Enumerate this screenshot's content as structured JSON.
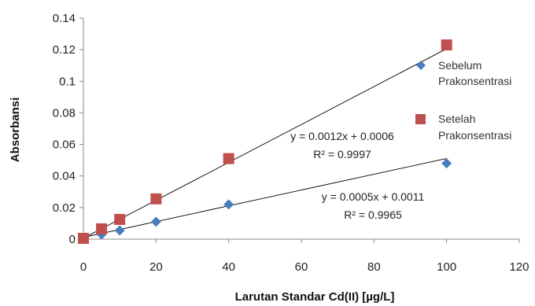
{
  "chart_data": {
    "type": "scatter",
    "title": "",
    "xlabel": "Larutan Standar Cd(II) [µg/L]",
    "ylabel": "Absorbansi",
    "xlim": [
      0,
      120
    ],
    "ylim": [
      0,
      0.14
    ],
    "x_ticks": [
      "0",
      "20",
      "40",
      "60",
      "80",
      "100",
      "120"
    ],
    "y_ticks": [
      "0",
      "0.02",
      "0.04",
      "0.06",
      "0.08",
      "0.1",
      "0.12",
      "0.14"
    ],
    "grid": false,
    "legend_position": "right",
    "series": [
      {
        "name_lines": [
          "Sebelum",
          "Prakonsentrasi"
        ],
        "marker": "diamond",
        "color": "#4a7ebb",
        "x": [
          0,
          5,
          10,
          20,
          40,
          100
        ],
        "y": [
          0.0,
          0.003,
          0.0055,
          0.011,
          0.022,
          0.048
        ],
        "trendline": {
          "slope": 0.0005,
          "intercept": 0.0011,
          "x_range": [
            0,
            100
          ]
        },
        "equation": "y = 0.0005x + 0.0011",
        "r2": "R² = 0.9965"
      },
      {
        "name_lines": [
          "Setelah",
          "Prakonsentrasi"
        ],
        "marker": "square",
        "color": "#c0504d",
        "x": [
          0,
          5,
          10,
          20,
          40,
          100
        ],
        "y": [
          0.0005,
          0.0065,
          0.0125,
          0.0255,
          0.051,
          0.123
        ],
        "trendline": {
          "slope": 0.0012,
          "intercept": 0.0006,
          "x_range": [
            0,
            100
          ]
        },
        "equation": "y = 0.0012x + 0.0006",
        "r2": "R² = 0.9997"
      }
    ]
  }
}
